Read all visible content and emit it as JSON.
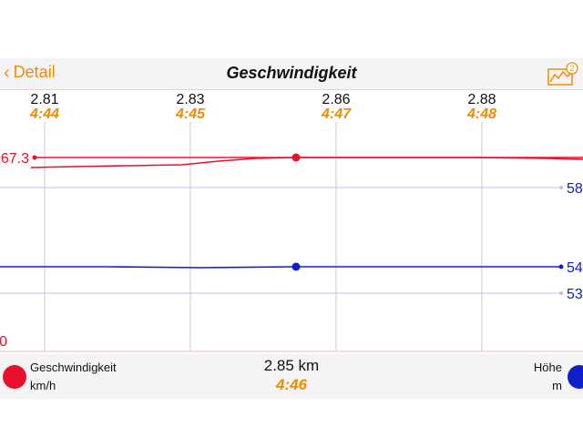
{
  "navbar": {
    "back_label": "Detail",
    "title": "Geschwindigkeit",
    "badge": "2"
  },
  "chart_data": {
    "type": "line",
    "x_ticks": [
      {
        "km": "2.81",
        "time": "4:44"
      },
      {
        "km": "2.83",
        "time": "4:45"
      },
      {
        "km": "2.86",
        "time": "4:47"
      },
      {
        "km": "2.88",
        "time": "4:48"
      }
    ],
    "left_axis_labels": [
      "67.3",
      "0"
    ],
    "right_axis_labels": [
      "58",
      "54",
      "53"
    ],
    "series": [
      {
        "name": "Geschwindigkeit",
        "color": "#e8102c",
        "unit": "km/h"
      },
      {
        "name": "Höhe",
        "color": "#1020c8",
        "unit": "m"
      }
    ]
  },
  "footer": {
    "left_name": "Geschwindigkeit",
    "left_unit": "km/h",
    "center_km": "2.85 km",
    "center_time": "4:46",
    "right_name": "Höhe",
    "right_unit": "m"
  },
  "colors": {
    "accent": "#f08c00",
    "speed": "#e8102c",
    "height": "#1020c8"
  }
}
